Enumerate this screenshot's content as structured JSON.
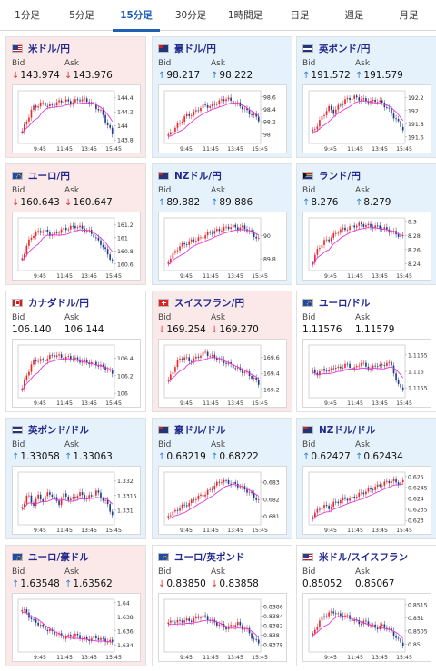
{
  "tabs": [
    {
      "label": "1分足",
      "active": false
    },
    {
      "label": "5分足",
      "active": false
    },
    {
      "label": "15分足",
      "active": true
    },
    {
      "label": "30分足",
      "active": false
    },
    {
      "label": "1時間足",
      "active": false
    },
    {
      "label": "日足",
      "active": false
    },
    {
      "label": "週足",
      "active": false
    },
    {
      "label": "月足",
      "active": false
    }
  ],
  "labels": {
    "bid": "Bid",
    "ask": "Ask"
  },
  "colors": {
    "up": "#2a7fd0",
    "down": "#e03535",
    "candle_up": "#e8262b",
    "candle_down": "#1e3c8c",
    "ma": "#e03ad6",
    "title": "#232a8c",
    "active_tab": "#1f5fb4"
  },
  "x_ticks": [
    "9:45",
    "11:45",
    "13:45",
    "15:45"
  ],
  "pairs": [
    {
      "name": "米ドル/円",
      "flag": "us-flag-icon",
      "flag_code": "us",
      "tone": "pink",
      "bid": "143.974",
      "bid_dir": "down",
      "ask": "143.976",
      "ask_dir": "down",
      "y_ticks": [
        "144.4",
        "144.2",
        "144",
        "143.8"
      ],
      "y_range": [
        143.75,
        144.5
      ]
    },
    {
      "name": "豪ドル/円",
      "flag": "australia-flag-icon",
      "flag_code": "au",
      "tone": "blue",
      "bid": "98.217",
      "bid_dir": "up",
      "ask": "98.222",
      "ask_dir": "up",
      "y_ticks": [
        "98.6",
        "98.4",
        "98.2",
        "98"
      ],
      "y_range": [
        97.85,
        98.7
      ]
    },
    {
      "name": "英ポンド/円",
      "flag": "uk-flag-icon",
      "flag_code": "gb",
      "tone": "blue",
      "bid": "191.572",
      "bid_dir": "up",
      "ask": "191.579",
      "ask_dir": "up",
      "y_ticks": [
        "192.2",
        "192",
        "191.8",
        "191.6"
      ],
      "y_range": [
        191.5,
        192.3
      ]
    },
    {
      "name": "ユーロ/円",
      "flag": "eu-flag-icon",
      "flag_code": "eu",
      "tone": "pink",
      "bid": "160.643",
      "bid_dir": "down",
      "ask": "160.647",
      "ask_dir": "down",
      "y_ticks": [
        "161.2",
        "161",
        "160.8",
        "160.6"
      ],
      "y_range": [
        160.5,
        161.3
      ]
    },
    {
      "name": "NZドル/円",
      "flag": "nz-flag-icon",
      "flag_code": "nz",
      "tone": "blue",
      "bid": "89.882",
      "bid_dir": "up",
      "ask": "89.886",
      "ask_dir": "up",
      "y_ticks": [
        "90",
        "89.8"
      ],
      "y_range": [
        89.7,
        90.15
      ]
    },
    {
      "name": "ランド/円",
      "flag": "south-africa-flag-icon",
      "flag_code": "za",
      "tone": "blue",
      "bid": "8.276",
      "bid_dir": "up",
      "ask": "8.279",
      "ask_dir": "up",
      "y_ticks": [
        "8.3",
        "8.28",
        "8.26",
        "8.24"
      ],
      "y_range": [
        8.23,
        8.305
      ]
    },
    {
      "name": "カナダドル/円",
      "flag": "canada-flag-icon",
      "flag_code": "ca",
      "tone": "white",
      "bid": "106.140",
      "bid_dir": "none",
      "ask": "106.144",
      "ask_dir": "none",
      "y_ticks": [
        "106.4",
        "106.2",
        "106"
      ],
      "y_range": [
        105.95,
        106.55
      ]
    },
    {
      "name": "スイスフラン/円",
      "flag": "swiss-flag-icon",
      "flag_code": "ch",
      "tone": "pink",
      "bid": "169.254",
      "bid_dir": "down",
      "ask": "169.270",
      "ask_dir": "down",
      "y_ticks": [
        "169.6",
        "169.4",
        "169.2"
      ],
      "y_range": [
        169.1,
        169.75
      ]
    },
    {
      "name": "ユーロ/ドル",
      "flag": "eu-flag-icon",
      "flag_code": "eu",
      "tone": "white",
      "bid": "1.11576",
      "bid_dir": "none",
      "ask": "1.11579",
      "ask_dir": "none",
      "y_ticks": [
        "1.1165",
        "1.116",
        "1.1155"
      ],
      "y_range": [
        1.1152,
        1.1168
      ]
    },
    {
      "name": "英ポンド/ドル",
      "flag": "uk-flag-icon",
      "flag_code": "gb",
      "tone": "blue",
      "bid": "1.33058",
      "bid_dir": "up",
      "ask": "1.33063",
      "ask_dir": "up",
      "y_ticks": [
        "1.332",
        "1.3315",
        "1.331"
      ],
      "y_range": [
        1.3305,
        1.3323
      ]
    },
    {
      "name": "豪ドル/ドル",
      "flag": "australia-flag-icon",
      "flag_code": "au",
      "tone": "blue",
      "bid": "0.68219",
      "bid_dir": "up",
      "ask": "0.68222",
      "ask_dir": "up",
      "y_ticks": [
        "0.683",
        "0.682",
        "0.681"
      ],
      "y_range": [
        0.6805,
        0.6836
      ]
    },
    {
      "name": "NZドル/ドル",
      "flag": "nz-flag-icon",
      "flag_code": "nz",
      "tone": "blue",
      "bid": "0.62427",
      "bid_dir": "up",
      "ask": "0.62434",
      "ask_dir": "up",
      "y_ticks": [
        "0.625",
        "0.6245",
        "0.624",
        "0.6235",
        "0.623"
      ],
      "y_range": [
        0.6228,
        0.6252
      ]
    },
    {
      "name": "ユーロ/豪ドル",
      "flag": "eu-flag-icon",
      "flag_code": "eu",
      "tone": "pink",
      "bid": "1.63548",
      "bid_dir": "up",
      "ask": "1.63562",
      "ask_dir": "up",
      "y_ticks": [
        "1.64",
        "1.638",
        "1.636",
        "1.634"
      ],
      "y_range": [
        1.633,
        1.6405
      ]
    },
    {
      "name": "ユーロ/英ポンド",
      "flag": "eu-flag-icon",
      "flag_code": "eu",
      "tone": "white",
      "bid": "0.83850",
      "bid_dir": "down",
      "ask": "0.83858",
      "ask_dir": "down",
      "y_ticks": [
        "0.8386",
        "0.8384",
        "0.8382",
        "0.838",
        "0.8378"
      ],
      "y_range": [
        0.83765,
        0.83875
      ]
    },
    {
      "name": "米ドル/スイスフラン",
      "flag": "us-flag-icon",
      "flag_code": "us",
      "tone": "white",
      "bid": "0.85052",
      "bid_dir": "none",
      "ask": "0.85067",
      "ask_dir": "none",
      "y_ticks": [
        "0.8515",
        "0.851",
        "0.8505",
        "0.85"
      ],
      "y_range": [
        0.8497,
        0.8517
      ]
    }
  ]
}
